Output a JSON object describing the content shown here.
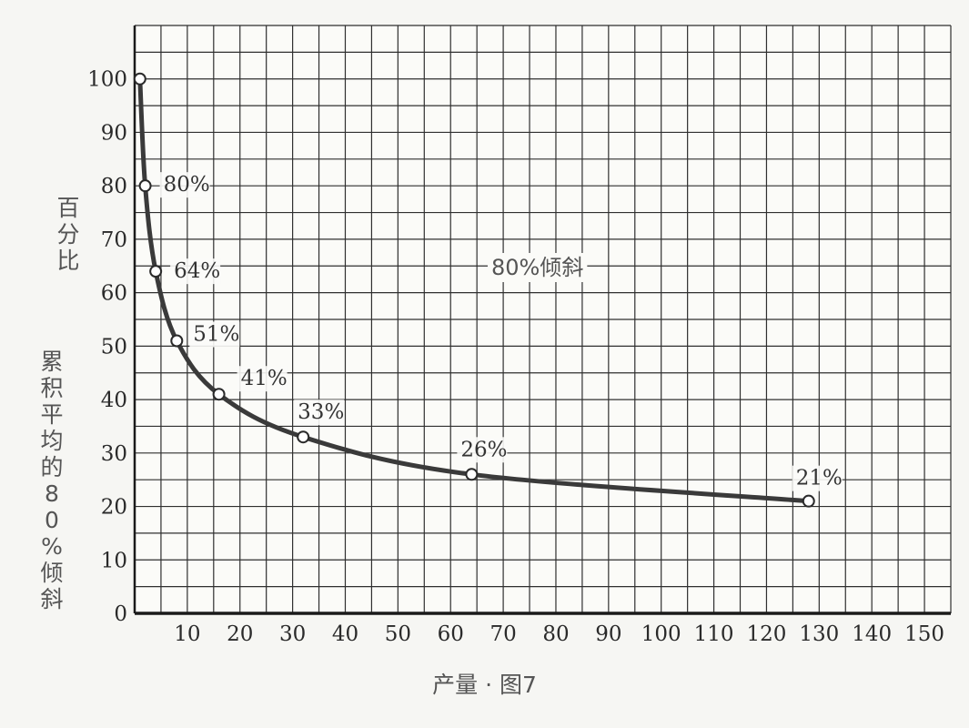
{
  "figure": {
    "ylabel_top": "百分比",
    "ylabel_bottom": "累积平均的80%倾斜",
    "xlabel": "产量 · 图7",
    "annotation": "80%倾斜"
  },
  "chart_data": {
    "type": "line",
    "x": [
      1,
      2,
      4,
      8,
      16,
      32,
      64,
      128
    ],
    "y": [
      100,
      80,
      64,
      51,
      41,
      33,
      26,
      21
    ],
    "data_labels": [
      "",
      "80%",
      "64%",
      "51%",
      "41%",
      "33%",
      "26%",
      "21%"
    ],
    "xlim": [
      0,
      155
    ],
    "ylim": [
      0,
      110
    ],
    "x_ticks": [
      10,
      20,
      30,
      40,
      50,
      60,
      70,
      80,
      90,
      100,
      110,
      120,
      130,
      140,
      150
    ],
    "y_ticks": [
      0,
      10,
      20,
      30,
      40,
      50,
      60,
      70,
      80,
      90,
      100
    ],
    "grid": true,
    "line_color": "#3a3a3a",
    "grid_color": "#2f2f2f"
  }
}
